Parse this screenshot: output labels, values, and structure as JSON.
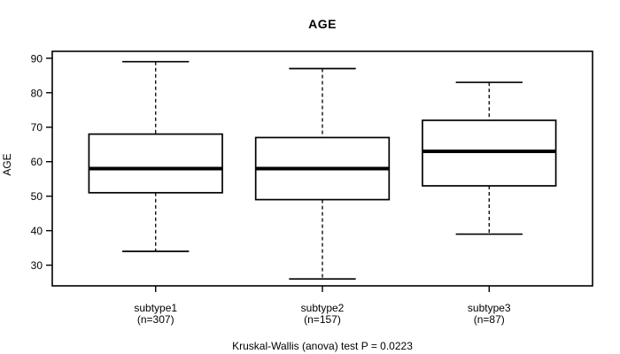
{
  "chart_data": {
    "type": "boxplot",
    "title": "AGE",
    "ylabel": "AGE",
    "xlabel": "",
    "ylim": [
      24,
      92
    ],
    "yticks": [
      30,
      40,
      50,
      60,
      70,
      80,
      90
    ],
    "grid": false,
    "categories": [
      "subtype1",
      "subtype2",
      "subtype3"
    ],
    "category_sublabels": [
      "(n=307)",
      "(n=157)",
      "(n=87)"
    ],
    "series": [
      {
        "name": "subtype1",
        "n": 307,
        "whisker_low": 34,
        "q1": 51,
        "median": 58,
        "q3": 68,
        "whisker_high": 89
      },
      {
        "name": "subtype2",
        "n": 157,
        "whisker_low": 26,
        "q1": 49,
        "median": 58,
        "q3": 67,
        "whisker_high": 87
      },
      {
        "name": "subtype3",
        "n": 87,
        "whisker_low": 39,
        "q1": 53,
        "median": 63,
        "q3": 72,
        "whisker_high": 83
      }
    ],
    "annotation": "Kruskal-Wallis (anova) test P = 0.0223",
    "colors": {
      "line": "#000000",
      "box_fill": "#ffffff",
      "background": "#ffffff"
    }
  }
}
